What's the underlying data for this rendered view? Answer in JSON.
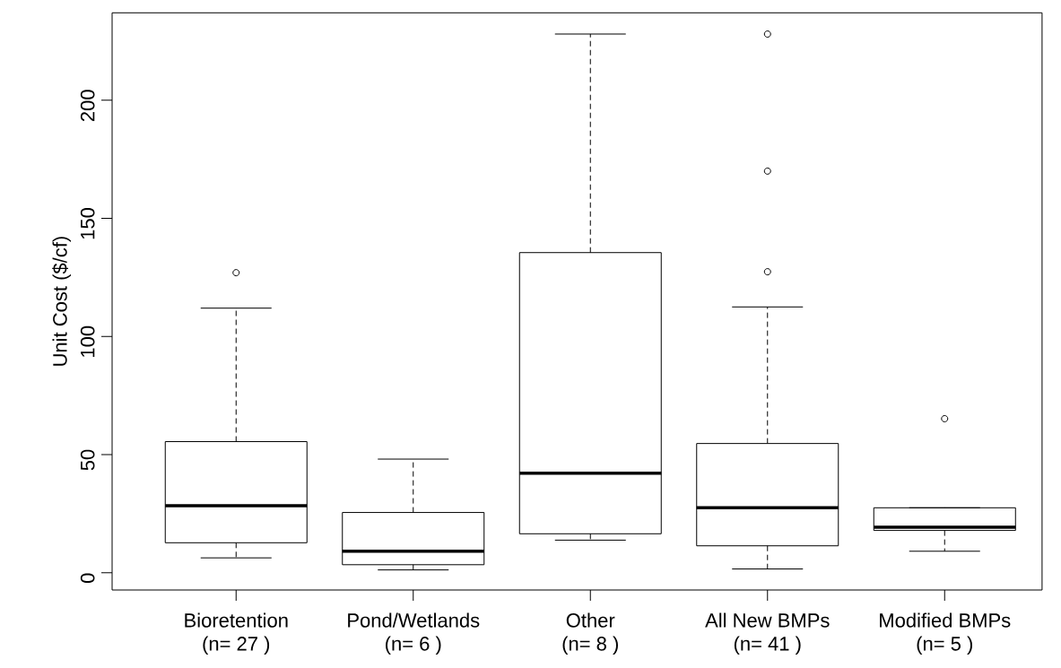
{
  "chart_data": {
    "type": "box",
    "ylabel": "Unit Cost ($/cf)",
    "categories": [
      "Bioretention\n(n= 27 )",
      "Pond/Wetlands\n(n= 6 )",
      "Other\n(n= 8 )",
      "All New BMPs\n(n= 41 )",
      "Modified BMPs\n(n= 5 )"
    ],
    "boxes": [
      {
        "low": 6.3,
        "q1": 12.7,
        "median": 28.4,
        "q3": 55.5,
        "high": 112,
        "outliers": [
          127
        ]
      },
      {
        "low": 1.2,
        "q1": 3.4,
        "median": 9.1,
        "q3": 25.5,
        "high": 48.1
      },
      {
        "low": 13.8,
        "q1": 16.5,
        "median": 42.1,
        "q3": 135.5,
        "high": 228
      },
      {
        "low": 1.6,
        "q1": 11.4,
        "median": 27.5,
        "q3": 54.7,
        "high": 112.5,
        "outliers": [
          127.4,
          170,
          228
        ]
      },
      {
        "low": 9.1,
        "q1": 17.9,
        "median": 19.3,
        "q3": 27.5,
        "high": 27.5,
        "outliers": [
          65.2
        ]
      }
    ],
    "ylim": [
      -7.3,
      237
    ],
    "yticks": [
      0,
      50,
      100,
      150,
      200
    ]
  }
}
